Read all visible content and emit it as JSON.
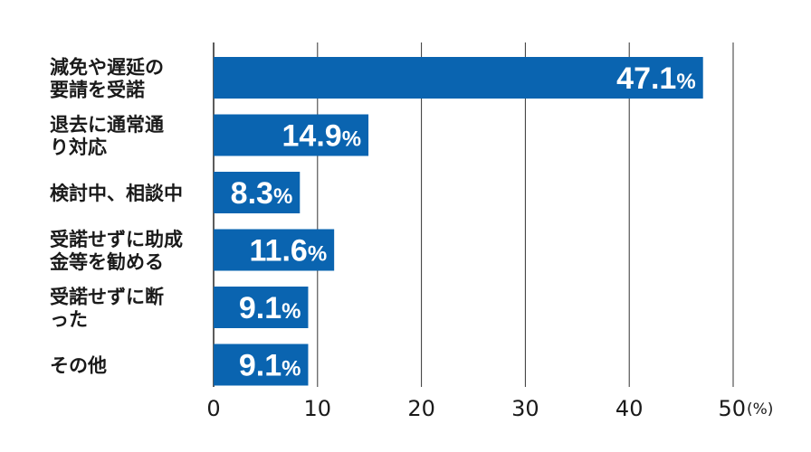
{
  "chart_data": {
    "type": "bar",
    "orientation": "horizontal",
    "categories": [
      [
        "減免や遅延の",
        "要請を受諾"
      ],
      [
        "退去に通常通",
        "り対応"
      ],
      [
        "検討中、相談中"
      ],
      [
        "受諾せずに助成",
        "金等を勧める"
      ],
      [
        "受諾せずに断",
        "った"
      ],
      [
        "その他"
      ]
    ],
    "values": [
      47.1,
      14.9,
      8.3,
      11.6,
      9.1,
      9.1
    ],
    "value_labels": [
      "47.1",
      "14.9",
      "8.3",
      "11.6",
      "9.1",
      "9.1"
    ],
    "value_suffix": "%",
    "xlim": [
      0,
      50
    ],
    "xticks": [
      0,
      10,
      20,
      30,
      40,
      50
    ],
    "x_unit": "(%)",
    "grid": true,
    "bar_color": "#0a64b0",
    "grid_color": "#333333"
  }
}
